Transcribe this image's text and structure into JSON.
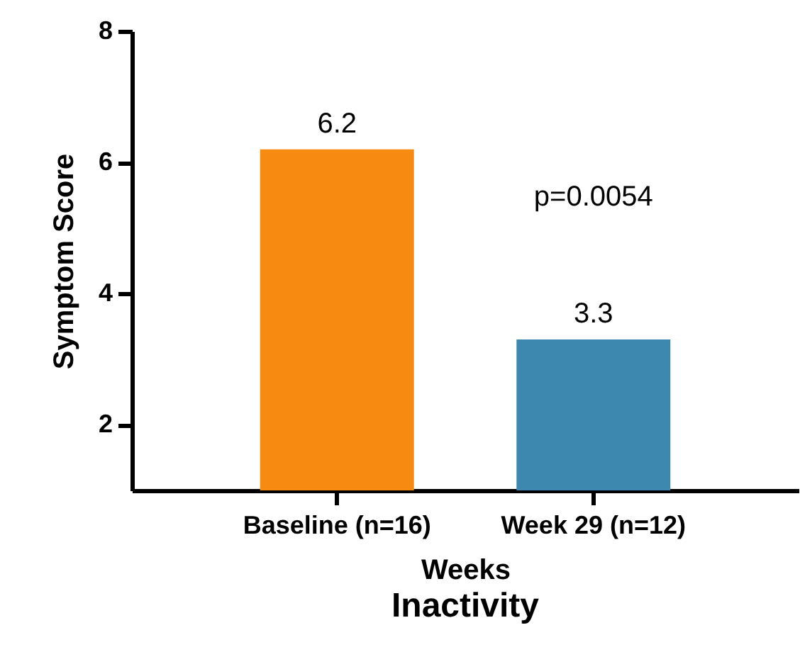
{
  "chart_data": {
    "type": "bar",
    "title": "Inactivity",
    "xlabel": "Weeks",
    "ylabel": "Symptom Score",
    "categories": [
      "Baseline (n=16)",
      "Week 29 (n=12)"
    ],
    "values": [
      6.2,
      3.3
    ],
    "colors": [
      "#f78a10",
      "#3d88ae"
    ],
    "ylim": [
      1,
      8
    ],
    "yticks": [
      2,
      4,
      6,
      8
    ],
    "grid": false,
    "data_labels": true,
    "annotations": [
      "p=0.0054"
    ]
  }
}
